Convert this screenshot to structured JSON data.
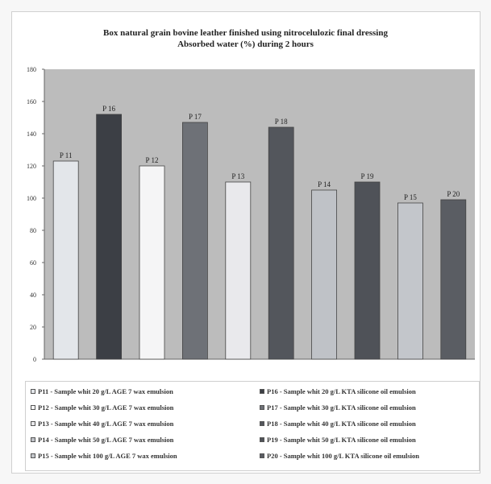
{
  "chart_data": {
    "type": "bar",
    "title": [
      "Box natural grain bovine leather finished using nitrocelulozic final dressing",
      "Absorbed water (%) during 2 hours"
    ],
    "categories": [
      "P 11",
      "P 16",
      "P 12",
      "P 17",
      "P 13",
      "P 18",
      "P 14",
      "P 19",
      "P 15",
      "P 20"
    ],
    "values": [
      123,
      152,
      120,
      147,
      110,
      144,
      105,
      110,
      97,
      99
    ],
    "ylim": [
      0,
      180
    ],
    "yticks": [
      "0",
      "20",
      "40",
      "60",
      "80",
      "100",
      "120",
      "140",
      "160",
      "180"
    ],
    "grid": false,
    "bar_colors": [
      "#e3e6ea",
      "#3c3f45",
      "#f5f5f6",
      "#6e7177",
      "#e9e9ec",
      "#53565c",
      "#bfc2c7",
      "#4f5258",
      "#c3c6cb",
      "#5a5d63"
    ],
    "plot_background": "#bcbcbc",
    "legend": {
      "placement": "bottom",
      "left": [
        "P11 - Sample whit 20 g/L AGE 7 wax emulsion",
        "P12 - Sample whit 30 g/L AGE 7 wax emulsion",
        "P13 - Sample whit 40 g/L AGE 7 wax emulsion",
        "P14 - Sample whit 50 g/L AGE 7 wax emulsion",
        "P15 - Sample whit 100 g/L AGE 7 wax emulsion"
      ],
      "right": [
        "P16 - Sample whit 20 g/L KTA silicone oil emulsion",
        "P17 - Sample whit 30 g/L KTA silicone oil emulsion",
        "P18 - Sample whit 40 g/L KTA silicone oil emulsion",
        "P19 - Sample whit 50 g/L KTA silicone oil emulsion",
        "P20 - Sample whit 100 g/L KTA silicone oil emulsion"
      ],
      "left_colors": [
        "#e3e6ea",
        "#f5f5f6",
        "#e9e9ec",
        "#bfc2c7",
        "#c3c6cb"
      ],
      "right_colors": [
        "#3c3f45",
        "#6e7177",
        "#53565c",
        "#4f5258",
        "#5a5d63"
      ]
    }
  }
}
